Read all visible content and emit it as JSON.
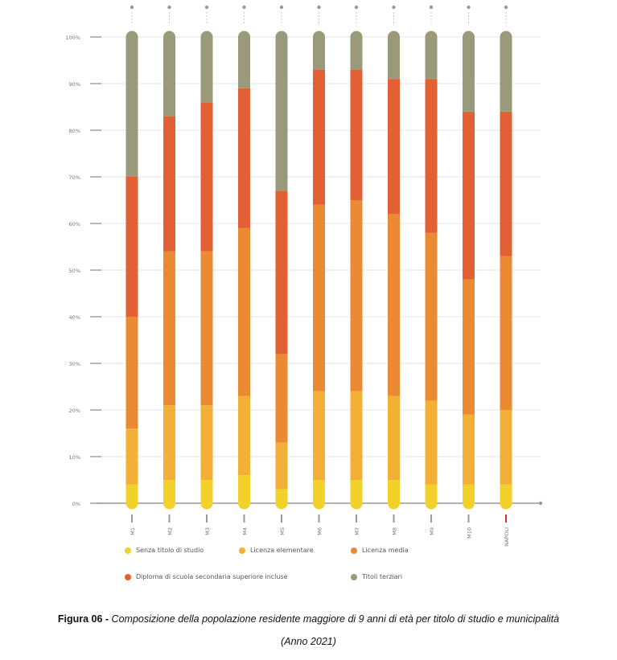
{
  "chart_data": {
    "type": "bar",
    "stacked": true,
    "categories": [
      "M1",
      "M2",
      "M3",
      "M4",
      "M5",
      "M6",
      "M7",
      "M8",
      "M9",
      "M10",
      "NAPOLI"
    ],
    "y_tick_labels": [
      "0%",
      "10%",
      "20%",
      "30%",
      "40%",
      "50%",
      "60%",
      "70%",
      "80%",
      "90%",
      "100%"
    ],
    "ylim": [
      0,
      100
    ],
    "grid": true,
    "legend_position": "bottom",
    "series": [
      {
        "name": "Senza titolo di studio",
        "color": "#F2D12B",
        "values": [
          4,
          5,
          5,
          6,
          3,
          5,
          5,
          5,
          4,
          4,
          4
        ]
      },
      {
        "name": "Licenza elementare",
        "color": "#F2B136",
        "values": [
          12,
          16,
          16,
          17,
          10,
          19,
          19,
          18,
          18,
          15,
          16
        ]
      },
      {
        "name": "Licenza media",
        "color": "#EC8A33",
        "values": [
          24,
          33,
          33,
          36,
          19,
          40,
          41,
          39,
          36,
          29,
          33
        ]
      },
      {
        "name": "Diploma di scuola secondaria superiore incluse",
        "color": "#E35F34",
        "values": [
          30,
          29,
          32,
          30,
          35,
          29,
          28,
          29,
          33,
          36,
          31
        ]
      },
      {
        "name": "Titoli terziari",
        "color": "#9A9A7A",
        "values": [
          30,
          17,
          14,
          11,
          33,
          7,
          7,
          9,
          9,
          16,
          16
        ]
      }
    ]
  },
  "caption": {
    "label": "Figura 06 - ",
    "text": "Composizione della popolazione residente maggiore di 9 anni di età per titolo di studio e municipalità",
    "year": "(Anno 2021)"
  },
  "colors": {
    "grid": "#dcdcdc",
    "axis": "#9a9a9a",
    "tick_text": "#777777",
    "top_marker": "#9a9a9a",
    "highlight_tick": "#d9302c"
  }
}
